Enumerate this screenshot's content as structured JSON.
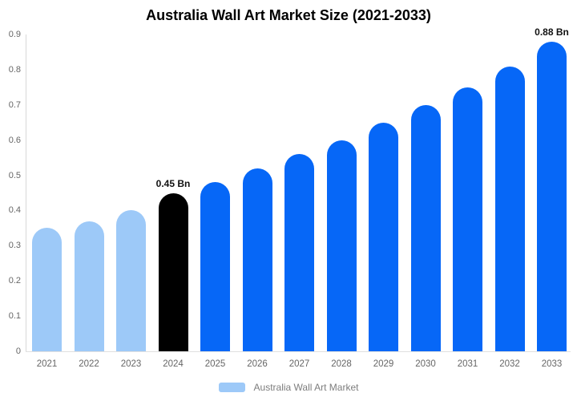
{
  "chart": {
    "title": "Australia Wall Art Market Size (2021-2033)",
    "legend_label": "Australia Wall Art Market"
  },
  "chart_data": {
    "type": "bar",
    "title": "Australia Wall Art Market Size (2021-2033)",
    "unit": "Bn",
    "categories": [
      "2021",
      "2022",
      "2023",
      "2024",
      "2025",
      "2026",
      "2027",
      "2028",
      "2029",
      "2030",
      "2031",
      "2032",
      "2033"
    ],
    "values": [
      0.35,
      0.37,
      0.4,
      0.45,
      0.48,
      0.52,
      0.56,
      0.6,
      0.65,
      0.7,
      0.75,
      0.81,
      0.88
    ],
    "segments": [
      "historical",
      "historical",
      "historical",
      "highlight",
      "forecast",
      "forecast",
      "forecast",
      "forecast",
      "forecast",
      "forecast",
      "forecast",
      "forecast",
      "forecast"
    ],
    "data_labels": [
      {
        "category": "2024",
        "text": "0.45 Bn"
      },
      {
        "category": "2033",
        "text": "0.88 Bn"
      }
    ],
    "xlabel": "",
    "ylabel": "",
    "ylim": [
      0,
      0.9
    ],
    "yticks": [
      "0.9",
      "0.8",
      "0.7",
      "0.6",
      "0.5",
      "0.4",
      "0.3",
      "0.2",
      "0.1",
      "0"
    ],
    "grid": false,
    "legend": {
      "position": "bottom",
      "label": "Australia Wall Art Market"
    },
    "colors": {
      "historical": "#9dc9f8",
      "highlight": "#000000",
      "forecast": "#0667f7",
      "axis_line": "#d8d8d8",
      "tick_label": "#666666",
      "data_label": "#111111",
      "legend_text": "#7d7d7d",
      "title": "#000000"
    }
  }
}
